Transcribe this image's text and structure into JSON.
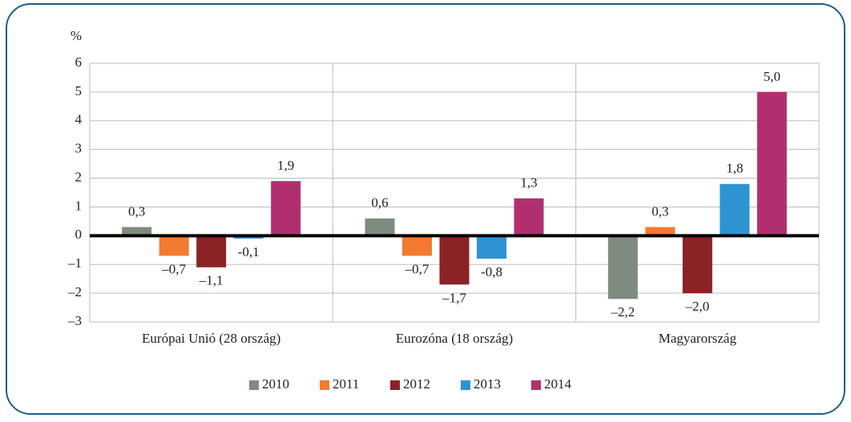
{
  "chart_data": {
    "type": "bar",
    "y_axis_label": "%",
    "categories": [
      "Európai Unió (28 ország)",
      "Eurozóna (18 ország)",
      "Magyarország"
    ],
    "series": [
      {
        "name": "2010",
        "color": "#7f8b7f",
        "values": [
          0.3,
          0.6,
          -2.2
        ],
        "value_labels": [
          "0,3",
          "0,6",
          "–2,2"
        ]
      },
      {
        "name": "2011",
        "color": "#f47a30",
        "values": [
          -0.7,
          -0.7,
          0.3
        ],
        "value_labels": [
          "–0,7",
          "–0,7",
          "0,3"
        ]
      },
      {
        "name": "2012",
        "color": "#8b2226",
        "values": [
          -1.1,
          -1.7,
          -2.0
        ],
        "value_labels": [
          "–1,1",
          "–1,7",
          "–2,0"
        ]
      },
      {
        "name": "2013",
        "color": "#2e93d3",
        "values": [
          -0.1,
          -0.8,
          1.8
        ],
        "value_labels": [
          "-0,1",
          "-0,8",
          "1,8"
        ]
      },
      {
        "name": "2014",
        "color": "#b22f6f",
        "values": [
          1.9,
          1.3,
          5.0
        ],
        "value_labels": [
          "1,9",
          "1,3",
          "5,0"
        ]
      }
    ],
    "ylim": [
      -3,
      6
    ],
    "yticks": [
      {
        "value": -3,
        "label": "–3"
      },
      {
        "value": -2,
        "label": "–2"
      },
      {
        "value": -1,
        "label": "–1"
      },
      0,
      1,
      2,
      3,
      4,
      5,
      6
    ],
    "grid": true,
    "legend": "bottom"
  }
}
